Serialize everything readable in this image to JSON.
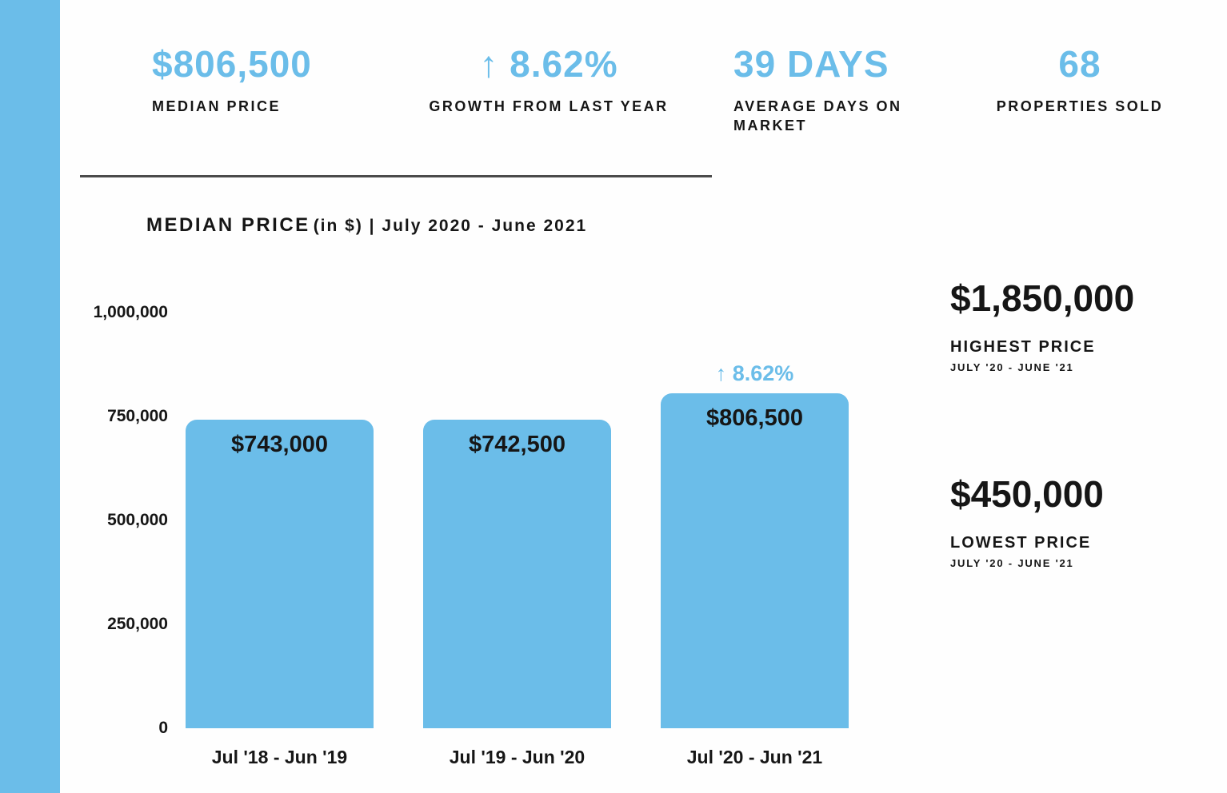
{
  "colors": {
    "accent": "#6BBDE9",
    "text": "#161616",
    "divider": "#4a4a4a",
    "background": "#fefefe"
  },
  "stats": [
    {
      "value": "$806,500",
      "label": "MEDIAN PRICE"
    },
    {
      "value": "↑ 8.62%",
      "label": "GROWTH FROM LAST YEAR"
    },
    {
      "value": "39 DAYS",
      "label": "AVERAGE DAYS ON MARKET"
    },
    {
      "value": "68",
      "label": "PROPERTIES SOLD"
    }
  ],
  "chart_title": {
    "main": "MEDIAN PRICE",
    "tail": "(in $) | July 2020 - June 2021"
  },
  "chart_data": {
    "type": "bar",
    "title": "MEDIAN PRICE (in $) | July 2020 - June 2021",
    "categories": [
      "Jul '18 - Jun '19",
      "Jul '19 - Jun '20",
      "Jul '20 - Jun '21"
    ],
    "values": [
      743000,
      742500,
      806500
    ],
    "value_labels": [
      "$743,000",
      "$742,500",
      "$806,500"
    ],
    "annotation": {
      "bar_index": 2,
      "text": "↑ 8.62%"
    },
    "xlabel": "",
    "ylabel": "",
    "ylim": [
      0,
      1000000
    ],
    "yticks": [
      0,
      250000,
      500000,
      750000,
      1000000
    ],
    "ytick_labels": [
      "0",
      "250,000",
      "500,000",
      "750,000",
      "1,000,000"
    ],
    "bar_color": "#6BBDE9",
    "grid": false,
    "legend": false
  },
  "highlights": [
    {
      "value": "$1,850,000",
      "label": "HIGHEST PRICE",
      "period": "JULY '20 - JUNE '21"
    },
    {
      "value": "$450,000",
      "label": "LOWEST PRICE",
      "period": "JULY '20 - JUNE '21"
    }
  ]
}
